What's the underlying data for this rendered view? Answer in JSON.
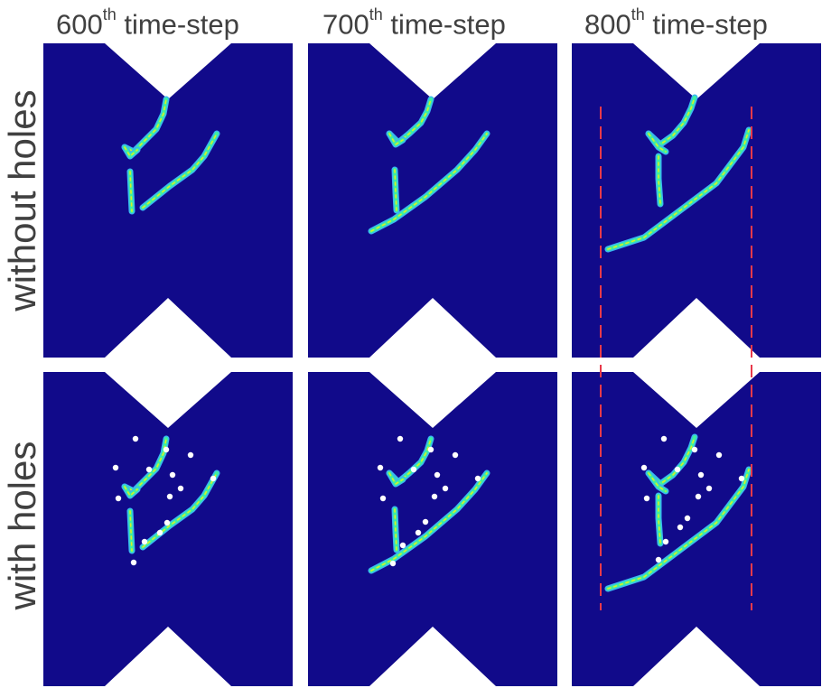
{
  "columns": [
    {
      "prefix": "600",
      "sup": "th",
      "suffix": " time-step"
    },
    {
      "prefix": "700",
      "sup": "th",
      "suffix": " time-step"
    },
    {
      "prefix": "800",
      "sup": "th",
      "suffix": " time-step"
    }
  ],
  "rows": [
    {
      "label": "without holes"
    },
    {
      "label": "with holes"
    }
  ],
  "colors": {
    "background": "#110a8a",
    "crack_outer": "#39b8f0",
    "crack_mid": "#3ef0a0",
    "crack_core": "#d8f028",
    "hole": "#ffffff",
    "guide_line": "#e8394a",
    "label_text": "#404040"
  }
}
